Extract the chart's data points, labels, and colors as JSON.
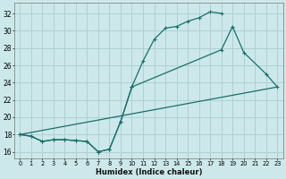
{
  "xlabel": "Humidex (Indice chaleur)",
  "background_color": "#cce8ea",
  "grid_color": "#b0d0d2",
  "line_color": "#1a6e6a",
  "x_ticks": [
    0,
    1,
    2,
    3,
    4,
    5,
    6,
    7,
    8,
    9,
    10,
    11,
    12,
    13,
    14,
    15,
    16,
    17,
    18,
    19,
    20,
    21,
    22,
    23
  ],
  "y_ticks": [
    16,
    18,
    20,
    22,
    24,
    26,
    28,
    30,
    32
  ],
  "xlim": [
    -0.5,
    23.5
  ],
  "ylim": [
    15.2,
    33.2
  ],
  "series1_x": [
    0,
    1,
    2,
    3,
    4,
    5,
    6,
    7,
    8,
    9,
    10,
    11,
    12,
    13,
    14,
    15,
    16,
    17,
    18
  ],
  "series1_y": [
    18.0,
    17.8,
    17.2,
    17.4,
    17.4,
    17.3,
    17.2,
    16.0,
    16.3,
    19.5,
    23.5,
    26.5,
    29.0,
    30.3,
    30.5,
    31.1,
    31.5,
    32.2,
    32.0
  ],
  "series2_x": [
    0,
    1,
    2,
    3,
    4,
    5,
    6,
    7,
    8,
    9,
    10,
    18,
    19,
    20,
    22,
    23
  ],
  "series2_y": [
    18.0,
    17.8,
    17.2,
    17.4,
    17.4,
    17.3,
    17.2,
    16.0,
    16.3,
    19.5,
    23.5,
    27.8,
    30.5,
    27.5,
    25.0,
    23.5
  ],
  "series3_x": [
    0,
    23
  ],
  "series3_y": [
    18.0,
    23.5
  ]
}
